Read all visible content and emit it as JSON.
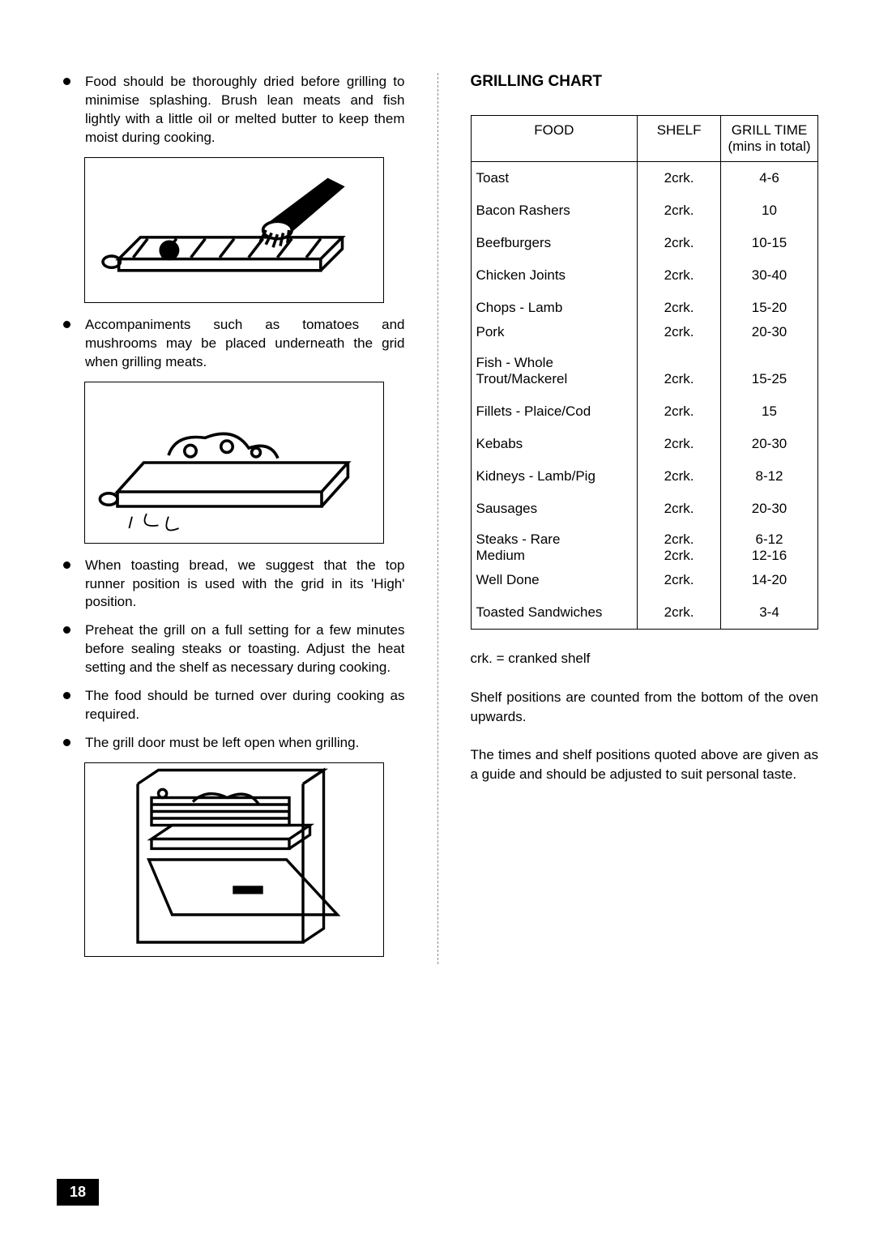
{
  "left": {
    "bullets": [
      "Food should be thoroughly dried before grilling to minimise splashing.  Brush lean meats and fish lightly with a little oil or melted butter to keep them moist during cooking.",
      "Accompaniments such as tomatoes and mushrooms may be placed underneath the grid when grilling meats.",
      "When toasting bread, we suggest that the top runner position is used with the grid in its 'High' position.",
      "Preheat the grill on a full setting for a few minutes before sealing steaks or toasting.  Adjust the heat setting and the shelf as necessary during cooking.",
      "The food  should be turned over during cooking as required.",
      "The grill door must be left open when grilling."
    ]
  },
  "right": {
    "title": "GRILLING CHART",
    "headers": {
      "food": "FOOD",
      "shelf": "SHELF",
      "time1": "GRILL TIME",
      "time2": "(mins in total)"
    },
    "rows": [
      {
        "food": "Toast",
        "shelf": "2crk.",
        "time": "4-6"
      },
      {
        "food": "Bacon  Rashers",
        "shelf": "2crk.",
        "time": "10"
      },
      {
        "food": "Beefburgers",
        "shelf": "2crk.",
        "time": "10-15"
      },
      {
        "food": "Chicken Joints",
        "shelf": "2crk.",
        "time": "30-40"
      },
      {
        "food": "Chops - Lamb",
        "shelf": "2crk.",
        "time": "15-20",
        "sub": [
          {
            "food": "Pork",
            "shelf": "2crk.",
            "time": "20-30"
          }
        ]
      },
      {
        "food": "Fish - Whole",
        "shelf": "",
        "time": "",
        "sub": [
          {
            "food": "Trout/Mackerel",
            "shelf": "2crk.",
            "time": "15-25"
          }
        ],
        "tight": true
      },
      {
        "food": "Fillets - Plaice/Cod",
        "shelf": "2crk.",
        "time": "15"
      },
      {
        "food": "Kebabs",
        "shelf": "2crk.",
        "time": "20-30"
      },
      {
        "food": "Kidneys - Lamb/Pig",
        "shelf": "2crk.",
        "time": "8-12"
      },
      {
        "food": "Sausages",
        "shelf": "2crk.",
        "time": "20-30"
      },
      {
        "food": "Steaks - Rare",
        "shelf": "2crk.",
        "time": "6-12",
        "sub": [
          {
            "food": "Medium",
            "shelf": "2crk.",
            "time": "12-16"
          },
          {
            "food": "Well Done",
            "shelf": "2crk.",
            "time": "14-20"
          }
        ],
        "tight": true
      },
      {
        "food": "Toasted Sandwiches",
        "shelf": "2crk.",
        "time": "3-4"
      }
    ],
    "legend": "crk.   =  cranked shelf",
    "note1": "Shelf positions are counted from the bottom of the oven upwards.",
    "note2": "The times and shelf positions quoted above are given as a guide and should be adjusted to suit personal taste."
  },
  "pagenum": "18"
}
